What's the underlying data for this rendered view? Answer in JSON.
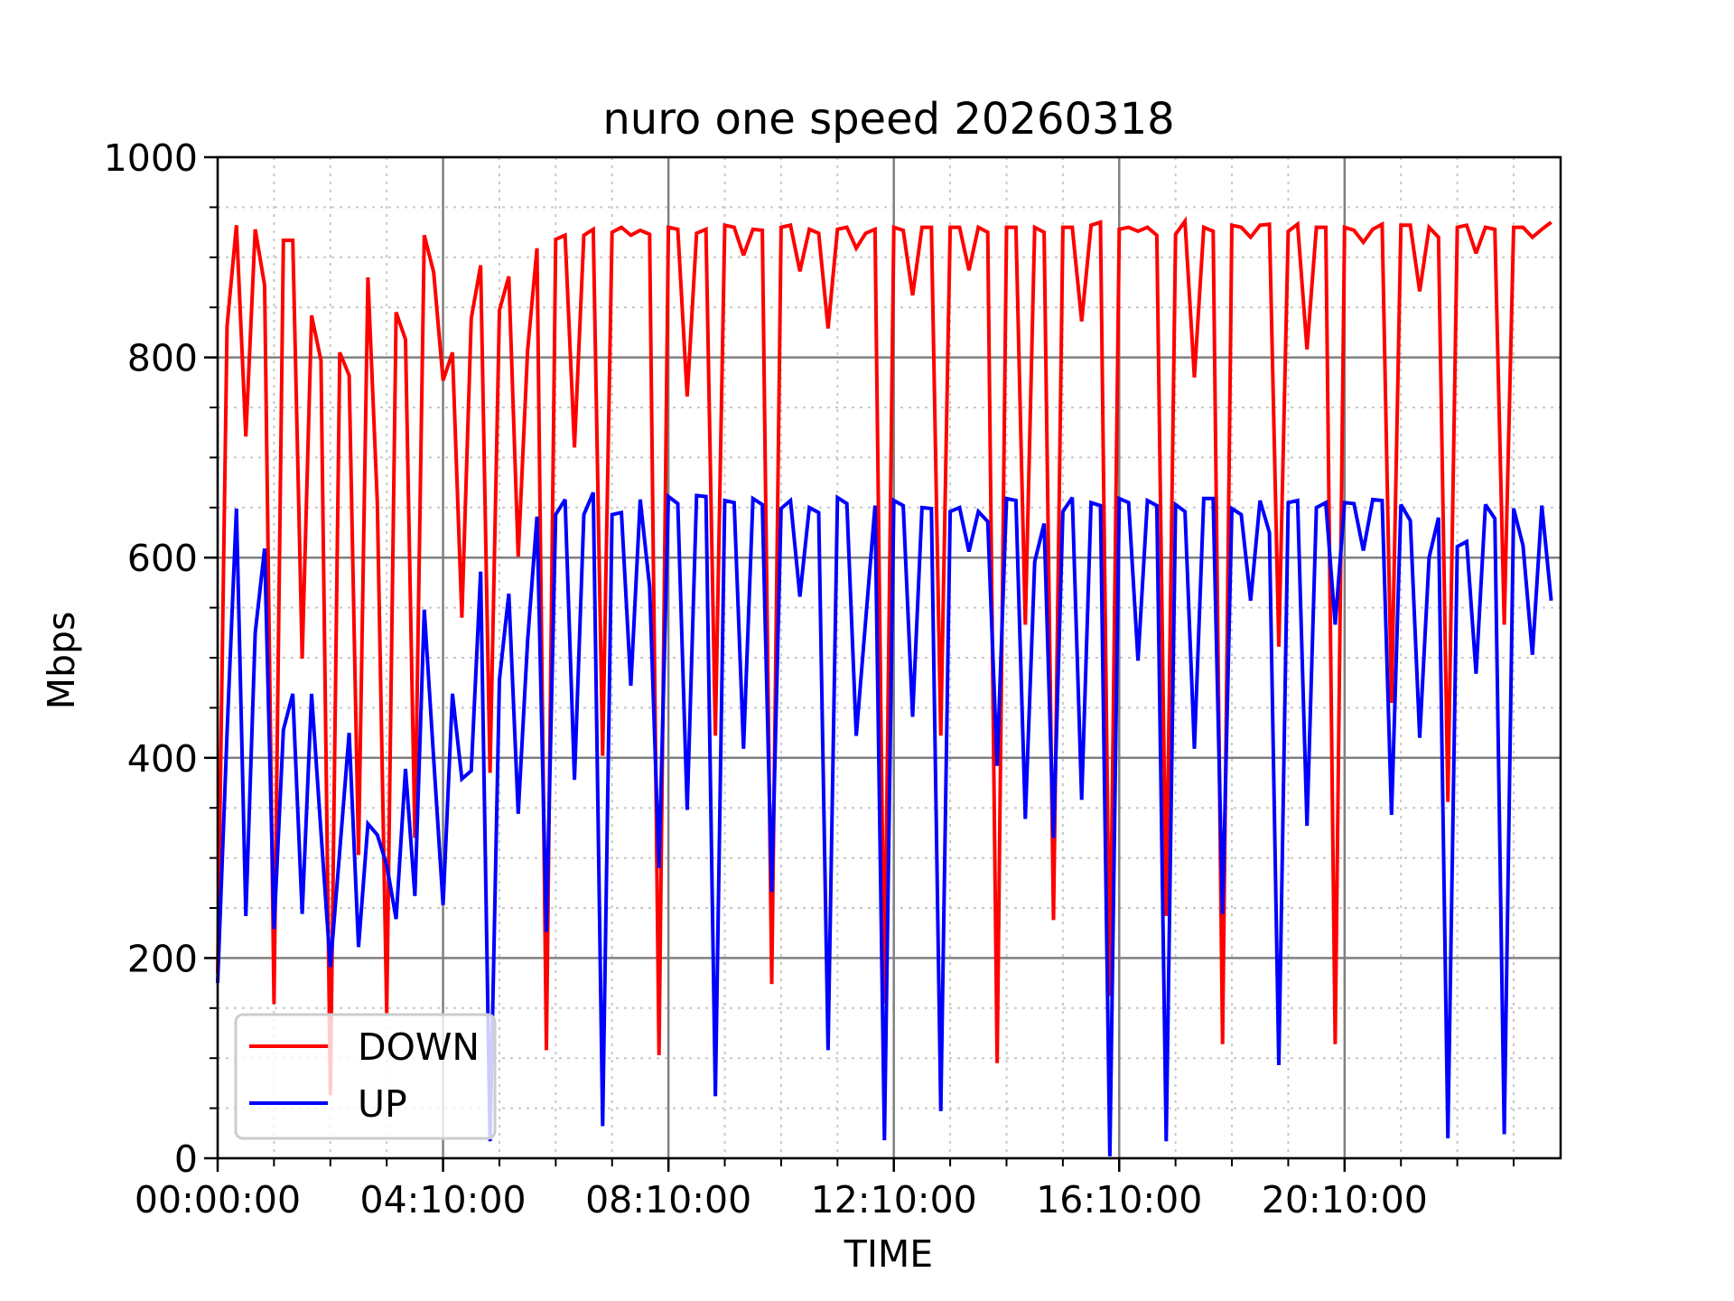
{
  "chart_data": {
    "type": "line",
    "title": "nuro one speed 20260318",
    "xlabel": "TIME",
    "ylabel": "Mbps",
    "xlim": [
      0,
      143
    ],
    "ylim": [
      0,
      1000
    ],
    "x_unit": "sample index (10-minute samples)",
    "x_ticks": [
      {
        "value": 0,
        "label": "00:00:00"
      },
      {
        "value": 24,
        "label": "04:10:00"
      },
      {
        "value": 48,
        "label": "08:10:00"
      },
      {
        "value": 72,
        "label": "12:10:00"
      },
      {
        "value": 96,
        "label": "16:10:00"
      },
      {
        "value": 120,
        "label": "20:10:00"
      }
    ],
    "x_minor_step": 6,
    "y_ticks": [
      {
        "value": 0,
        "label": "0"
      },
      {
        "value": 200,
        "label": "200"
      },
      {
        "value": 400,
        "label": "400"
      },
      {
        "value": 600,
        "label": "600"
      },
      {
        "value": 800,
        "label": "800"
      },
      {
        "value": 1000,
        "label": "1000"
      }
    ],
    "y_minor_step": 50,
    "grid": true,
    "legend": "lower-left",
    "series": [
      {
        "name": "DOWN",
        "color": "#ff0000",
        "values": [
          185,
          831,
          932,
          721,
          928,
          872,
          154,
          917,
          917,
          499,
          842,
          797,
          63,
          805,
          782,
          303,
          880,
          655,
          145,
          845,
          818,
          320,
          922,
          885,
          777,
          805,
          540,
          839,
          892,
          385,
          847,
          881,
          601,
          807,
          909,
          108,
          918,
          922,
          710,
          922,
          928,
          402,
          925,
          930,
          922,
          927,
          923,
          103,
          930,
          928,
          761,
          924,
          928,
          422,
          932,
          930,
          902,
          928,
          927,
          174,
          930,
          932,
          886,
          928,
          924,
          829,
          928,
          930,
          909,
          924,
          928,
          155,
          930,
          927,
          862,
          930,
          930,
          422,
          930,
          930,
          887,
          930,
          925,
          95,
          930,
          930,
          533,
          930,
          925,
          238,
          930,
          930,
          836,
          932,
          935,
          162,
          928,
          930,
          926,
          930,
          922,
          242,
          923,
          936,
          780,
          930,
          926,
          114,
          932,
          930,
          920,
          932,
          933,
          511,
          926,
          933,
          808,
          930,
          930,
          114,
          930,
          927,
          915,
          928,
          933,
          455,
          932,
          932,
          866,
          930,
          920,
          356,
          930,
          932,
          904,
          930,
          928,
          533,
          930,
          930,
          920,
          928,
          935
        ]
      },
      {
        "name": "UP",
        "color": "#0000ff",
        "values": [
          175,
          425,
          649,
          242,
          525,
          609,
          229,
          428,
          464,
          244,
          464,
          326,
          191,
          307,
          425,
          211,
          334,
          323,
          293,
          239,
          389,
          262,
          548,
          399,
          253,
          464,
          379,
          387,
          586,
          17,
          478,
          564,
          344,
          517,
          641,
          226,
          643,
          658,
          378,
          643,
          665,
          32,
          643,
          645,
          472,
          658,
          571,
          290,
          661,
          654,
          348,
          662,
          661,
          62,
          657,
          655,
          409,
          659,
          653,
          266,
          649,
          657,
          561,
          650,
          645,
          108,
          660,
          654,
          422,
          537,
          652,
          18,
          657,
          652,
          441,
          650,
          649,
          47,
          646,
          650,
          606,
          646,
          636,
          392,
          659,
          657,
          339,
          596,
          634,
          320,
          646,
          660,
          358,
          655,
          652,
          2,
          659,
          655,
          497,
          657,
          652,
          17,
          653,
          646,
          409,
          659,
          659,
          244,
          649,
          643,
          557,
          657,
          625,
          93,
          655,
          657,
          332,
          650,
          655,
          533,
          655,
          654,
          607,
          658,
          657,
          343,
          653,
          637,
          420,
          600,
          640,
          20,
          611,
          616,
          484,
          653,
          639,
          24,
          649,
          612,
          503,
          652,
          557
        ]
      }
    ]
  }
}
